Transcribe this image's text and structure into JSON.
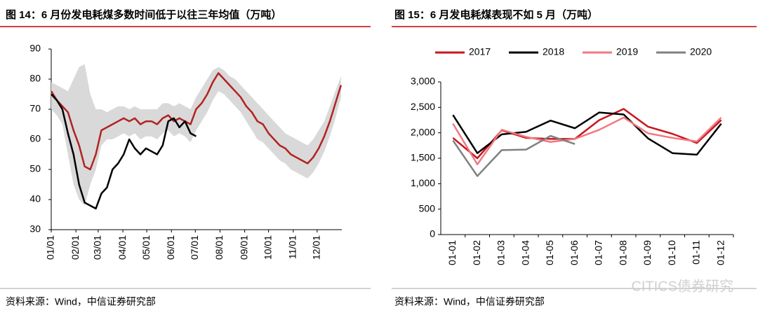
{
  "chart_data": [
    {
      "type": "line",
      "title": "图 14：6 月份发电耗煤多数时间低于以往三年均值（万吨）",
      "source": "资料来源：Wind，中信证券研究部",
      "x": [
        0,
        7,
        14,
        21,
        28,
        35,
        42,
        49,
        56,
        63,
        70,
        77,
        84,
        91,
        98,
        105,
        112,
        119,
        126,
        133,
        140,
        147,
        154,
        161,
        168,
        175,
        182,
        189,
        196,
        203,
        210,
        217,
        224,
        231,
        238,
        245,
        252,
        259,
        266,
        273,
        280,
        287,
        294,
        301,
        308,
        315,
        322,
        329,
        336,
        343,
        350,
        357,
        364
      ],
      "xlim": [
        0,
        365
      ],
      "xticks": [
        {
          "value": 0,
          "label": "01/01"
        },
        {
          "value": 31,
          "label": "02/01"
        },
        {
          "value": 59,
          "label": "03/01"
        },
        {
          "value": 90,
          "label": "04/01"
        },
        {
          "value": 120,
          "label": "05/01"
        },
        {
          "value": 151,
          "label": "06/01"
        },
        {
          "value": 181,
          "label": "07/01"
        },
        {
          "value": 212,
          "label": "08/01"
        },
        {
          "value": 243,
          "label": "09/01"
        },
        {
          "value": 273,
          "label": "10/01"
        },
        {
          "value": 304,
          "label": "11/01"
        },
        {
          "value": 334,
          "label": "12/01"
        }
      ],
      "ylim": [
        30,
        90
      ],
      "yticks": [
        30,
        40,
        50,
        60,
        70,
        80,
        90
      ],
      "band": {
        "color": "#d9d9d9",
        "lower": [
          70,
          68,
          65,
          55,
          45,
          40,
          38,
          45,
          50,
          58,
          60,
          60,
          61,
          62,
          61,
          62,
          60,
          61,
          61,
          60,
          62,
          63,
          61,
          62,
          61,
          59,
          63,
          66,
          69,
          73,
          76,
          75,
          73,
          71,
          69,
          66,
          63,
          60,
          59,
          57,
          55,
          53,
          52,
          50,
          49,
          48,
          47,
          49,
          52,
          56,
          61,
          67,
          74
        ],
        "upper": [
          79,
          78,
          77,
          76,
          80,
          84,
          85,
          75,
          70,
          70,
          69,
          70,
          71,
          71,
          70,
          71,
          70,
          70,
          70,
          70,
          72,
          72,
          71,
          72,
          71,
          70,
          74,
          77,
          80,
          83,
          84,
          83,
          81,
          80,
          78,
          76,
          74,
          72,
          70,
          68,
          66,
          64,
          62,
          61,
          60,
          59,
          58,
          60,
          63,
          66,
          71,
          76,
          81
        ]
      },
      "series": [
        {
          "color": "#b22222",
          "values": [
            76,
            73,
            71,
            69,
            63,
            58,
            51,
            50,
            55,
            63,
            64,
            65,
            66,
            67,
            66,
            67,
            65,
            66,
            66,
            65,
            67,
            68,
            66,
            67,
            66,
            65,
            70,
            72,
            75,
            79,
            82,
            80,
            78,
            76,
            74,
            71,
            69,
            66,
            65,
            62,
            60,
            58,
            57,
            55,
            54,
            53,
            52,
            54,
            57,
            61,
            66,
            72,
            78
          ]
        },
        {
          "color": "#000000",
          "values": [
            75,
            73,
            70,
            62,
            55,
            45,
            39,
            38,
            37,
            42,
            44,
            50,
            52,
            55,
            60,
            57,
            55,
            57,
            56,
            55,
            58,
            66,
            67,
            64,
            66,
            62,
            61,
            null,
            null,
            null,
            null,
            null,
            null,
            null,
            null,
            null,
            null,
            null,
            null,
            null,
            null,
            null,
            null,
            null,
            null,
            null,
            null,
            null,
            null,
            null,
            null,
            null,
            null
          ]
        }
      ]
    },
    {
      "type": "line",
      "title": "图 15：6 月发电耗煤表现不如 5 月（万吨）",
      "source": "资料来源：Wind，中信证券研究部",
      "categories": [
        "01-01",
        "01-02",
        "01-03",
        "01-04",
        "01-05",
        "01-06",
        "01-07",
        "01-08",
        "01-09",
        "01-10",
        "01-11",
        "01-12"
      ],
      "ylim": [
        0,
        3000
      ],
      "yticks": [
        0,
        500,
        {
          "value": 1000,
          "label": "1,000"
        },
        {
          "value": 1500,
          "label": "1,500"
        },
        {
          "value": 2000,
          "label": "2,000"
        },
        {
          "value": 2500,
          "label": "2,500"
        },
        {
          "value": 3000,
          "label": "3,000"
        }
      ],
      "legend": "top",
      "series": [
        {
          "name": "2017",
          "color": "#c8161d",
          "values": [
            1900,
            1500,
            2050,
            1900,
            1880,
            1880,
            2250,
            2470,
            2120,
            1980,
            1800,
            2250
          ]
        },
        {
          "name": "2018",
          "color": "#000000",
          "values": [
            2350,
            1600,
            1970,
            2020,
            2240,
            2090,
            2400,
            2360,
            1890,
            1600,
            1570,
            2180
          ]
        },
        {
          "name": "2019",
          "color": "#f07880",
          "values": [
            2180,
            1380,
            2060,
            1920,
            1820,
            1880,
            2060,
            2300,
            1990,
            1900,
            1830,
            2300
          ]
        },
        {
          "name": "2020",
          "color": "#808080",
          "values": [
            1850,
            1150,
            1660,
            1670,
            1940,
            1780,
            null,
            null,
            null,
            null,
            null,
            null
          ]
        }
      ]
    }
  ],
  "watermark": "CITICS债券研究"
}
